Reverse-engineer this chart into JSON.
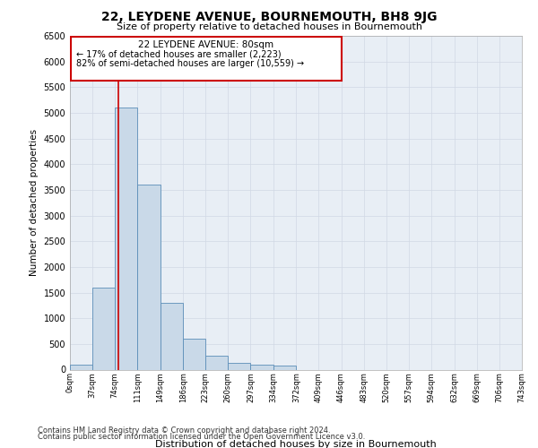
{
  "title": "22, LEYDENE AVENUE, BOURNEMOUTH, BH8 9JG",
  "subtitle": "Size of property relative to detached houses in Bournemouth",
  "xlabel": "Distribution of detached houses by size in Bournemouth",
  "ylabel": "Number of detached properties",
  "footnote1": "Contains HM Land Registry data © Crown copyright and database right 2024.",
  "footnote2": "Contains public sector information licensed under the Open Government Licence v3.0.",
  "property_size": 80,
  "annotation_title": "22 LEYDENE AVENUE: 80sqm",
  "annotation_line1": "← 17% of detached houses are smaller (2,223)",
  "annotation_line2": "82% of semi-detached houses are larger (10,559) →",
  "bar_edges": [
    0,
    37,
    74,
    111,
    149,
    186,
    223,
    260,
    297,
    334,
    372,
    409,
    446,
    483,
    520,
    557,
    594,
    632,
    669,
    706,
    743
  ],
  "bar_heights": [
    100,
    1600,
    5100,
    3600,
    1300,
    600,
    270,
    130,
    100,
    80,
    0,
    0,
    0,
    0,
    0,
    0,
    0,
    0,
    0,
    0
  ],
  "bar_color": "#c9d9e8",
  "bar_edge_color": "#5b8db8",
  "red_line_color": "#cc0000",
  "annotation_box_color": "#cc0000",
  "grid_color": "#d0d8e4",
  "background_color": "#e8eef5",
  "ylim": [
    0,
    6500
  ],
  "yticks": [
    0,
    500,
    1000,
    1500,
    2000,
    2500,
    3000,
    3500,
    4000,
    4500,
    5000,
    5500,
    6000,
    6500
  ]
}
